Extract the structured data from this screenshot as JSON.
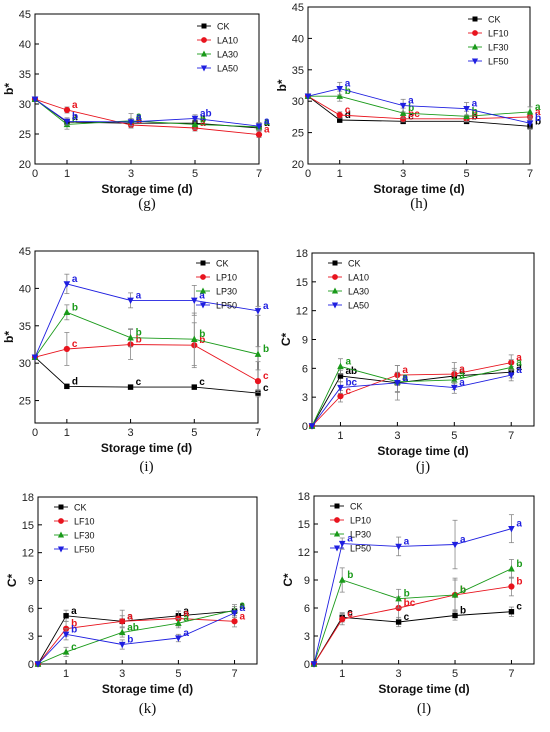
{
  "colors": {
    "CK": "#000000",
    "s10": "#e8141e",
    "s30": "#1a9a1a",
    "s50": "#1f1fe0"
  },
  "chart_data": [
    {
      "panel": "(g)",
      "type": "line",
      "xlabel": "Storage time (d)",
      "ylabel": "b*",
      "xlim": [
        0,
        7
      ],
      "ylim": [
        20,
        45
      ],
      "yticks": [
        20,
        25,
        30,
        35,
        40,
        45
      ],
      "x": [
        0,
        1,
        3,
        5,
        7
      ],
      "xticks": [
        0,
        1,
        3,
        5,
        7
      ],
      "xtick_labels": [
        "0",
        "1",
        "3",
        "5",
        "7"
      ],
      "legend": "top-right",
      "series": [
        {
          "name": "CK",
          "values": [
            30.8,
            27.0,
            26.8,
            26.8,
            26.0
          ],
          "err": [
            0,
            0.5,
            0.5,
            0.5,
            0.4
          ],
          "letters": [
            "",
            "a",
            "a",
            "a",
            "a"
          ]
        },
        {
          "name": "LA10",
          "values": [
            30.8,
            29.0,
            26.5,
            26.0,
            24.9
          ],
          "err": [
            0,
            0.5,
            0.5,
            0.5,
            0.5
          ],
          "letters": [
            "",
            "a",
            "a",
            "a",
            "a"
          ]
        },
        {
          "name": "LA30",
          "values": [
            30.8,
            26.6,
            27.2,
            26.6,
            26.2
          ],
          "err": [
            0,
            0.8,
            1.2,
            0.8,
            0.6
          ],
          "letters": [
            "",
            "c",
            "a",
            "b",
            "a"
          ]
        },
        {
          "name": "LA50",
          "values": [
            30.8,
            27.1,
            27.0,
            27.6,
            26.3
          ],
          "err": [
            0,
            0.6,
            0.6,
            0.6,
            0.6
          ],
          "letters": [
            "",
            "b",
            "a",
            "ab",
            "a"
          ]
        }
      ]
    },
    {
      "panel": "(h)",
      "type": "line",
      "xlabel": "Storage time (d)",
      "ylabel": "b*",
      "xlim": [
        0,
        7
      ],
      "ylim": [
        20,
        45
      ],
      "yticks": [
        20,
        25,
        30,
        35,
        40,
        45
      ],
      "x": [
        0,
        1,
        3,
        5,
        7
      ],
      "xticks": [
        0,
        1,
        3,
        5,
        7
      ],
      "xtick_labels": [
        "0",
        "1",
        "3",
        "5",
        "7"
      ],
      "legend": "top-right",
      "series": [
        {
          "name": "CK",
          "values": [
            30.8,
            27.0,
            26.8,
            26.8,
            26.0
          ],
          "err": [
            0,
            0.4,
            0.4,
            0.4,
            0.5
          ],
          "letters": [
            "",
            "d",
            "c",
            "b",
            "b"
          ]
        },
        {
          "name": "LF10",
          "values": [
            30.8,
            27.8,
            27.2,
            27.2,
            27.5
          ],
          "err": [
            0,
            0.5,
            0.5,
            0.5,
            0.5
          ],
          "letters": [
            "",
            "c",
            "bc",
            "b",
            "a"
          ]
        },
        {
          "name": "LF30",
          "values": [
            30.8,
            30.8,
            28.1,
            27.6,
            28.3
          ],
          "err": [
            0,
            0.8,
            0.8,
            0.8,
            0.8
          ],
          "letters": [
            "",
            "b",
            "b",
            "b",
            "a"
          ]
        },
        {
          "name": "LF50",
          "values": [
            30.8,
            32.0,
            29.3,
            28.8,
            26.5
          ],
          "err": [
            0,
            1.0,
            1.0,
            1.0,
            0.8
          ],
          "letters": [
            "",
            "a",
            "a",
            "a",
            "b"
          ]
        }
      ]
    },
    {
      "panel": "(i)",
      "type": "line",
      "xlabel": "Storage time (d)",
      "ylabel": "b*",
      "xlim": [
        0,
        7
      ],
      "ylim": [
        22,
        45
      ],
      "yticks": [
        25,
        30,
        35,
        40,
        45
      ],
      "x": [
        0,
        1,
        3,
        5,
        7
      ],
      "xticks": [
        0,
        1,
        3,
        5,
        7
      ],
      "xtick_labels": [
        "0",
        "1",
        "3",
        "5",
        "7"
      ],
      "legend": "top-right",
      "series": [
        {
          "name": "CK",
          "values": [
            30.8,
            26.9,
            26.8,
            26.8,
            26.0
          ],
          "err": [
            0,
            0.3,
            0.3,
            0.3,
            0.5
          ],
          "letters": [
            "",
            "d",
            "c",
            "c",
            "c"
          ]
        },
        {
          "name": "LP10",
          "values": [
            30.8,
            31.9,
            32.5,
            32.4,
            27.6
          ],
          "err": [
            0,
            2.2,
            2.0,
            3.0,
            1.5
          ],
          "letters": [
            "",
            "c",
            "b",
            "b",
            "c"
          ]
        },
        {
          "name": "LP30",
          "values": [
            30.8,
            36.8,
            33.4,
            33.2,
            31.2
          ],
          "err": [
            0,
            1.0,
            1.2,
            3.5,
            1.0
          ],
          "letters": [
            "",
            "b",
            "b",
            "b",
            "b"
          ]
        },
        {
          "name": "LP50",
          "values": [
            30.8,
            40.6,
            38.4,
            38.4,
            37.0
          ],
          "err": [
            0,
            1.3,
            1.0,
            2.0,
            0.6
          ],
          "letters": [
            "",
            "a",
            "a",
            "a",
            "a"
          ]
        }
      ]
    },
    {
      "panel": "(j)",
      "type": "line",
      "xlabel": "Storage time (d)",
      "ylabel": "C*",
      "xlim": [
        0,
        7.8
      ],
      "ylim": [
        0,
        18
      ],
      "yticks": [
        0,
        3,
        6,
        9,
        12,
        15,
        18
      ],
      "x": [
        0,
        1,
        3,
        5,
        7
      ],
      "xticks": [
        1,
        3,
        5,
        7
      ],
      "xtick_labels": [
        "1",
        "3",
        "5",
        "7"
      ],
      "legend": "top-left",
      "series": [
        {
          "name": "CK",
          "values": [
            0,
            5.2,
            4.5,
            5.2,
            5.6
          ],
          "err": [
            0,
            0.6,
            1.0,
            0.8,
            0.6
          ],
          "letters": [
            "",
            "ab",
            "a",
            "a",
            "a"
          ]
        },
        {
          "name": "LA10",
          "values": [
            0,
            3.1,
            5.3,
            5.4,
            6.6
          ],
          "err": [
            0,
            0.6,
            1.0,
            1.2,
            0.8
          ],
          "letters": [
            "",
            "c",
            "a",
            "a",
            "a"
          ]
        },
        {
          "name": "LA30",
          "values": [
            0,
            6.2,
            4.6,
            4.8,
            6.1
          ],
          "err": [
            0,
            0.8,
            1.0,
            1.0,
            0.8
          ],
          "letters": [
            "",
            "a",
            "a",
            "a",
            "a"
          ]
        },
        {
          "name": "LA50",
          "values": [
            0,
            4.0,
            4.5,
            4.0,
            5.3
          ],
          "err": [
            0,
            0.6,
            1.8,
            0.6,
            0.6
          ],
          "letters": [
            "",
            "bc",
            "a",
            "a",
            "a"
          ]
        }
      ]
    },
    {
      "panel": "(k)",
      "type": "line",
      "xlabel": "Storage time (d)",
      "ylabel": "C*",
      "xlim": [
        0,
        7.8
      ],
      "ylim": [
        0,
        18
      ],
      "yticks": [
        0,
        3,
        6,
        9,
        12,
        15,
        18
      ],
      "x": [
        0,
        1,
        3,
        5,
        7
      ],
      "xticks": [
        1,
        3,
        5,
        7
      ],
      "xtick_labels": [
        "1",
        "3",
        "5",
        "7"
      ],
      "legend": "top-left",
      "series": [
        {
          "name": "CK",
          "values": [
            0,
            5.2,
            4.6,
            5.2,
            5.7
          ],
          "err": [
            0,
            0.6,
            0.6,
            0.5,
            0.5
          ],
          "letters": [
            "",
            "a",
            "a",
            "a",
            "a"
          ]
        },
        {
          "name": "LF10",
          "values": [
            0,
            3.8,
            4.6,
            4.9,
            4.6
          ],
          "err": [
            0,
            0.8,
            1.2,
            0.8,
            0.6
          ],
          "letters": [
            "",
            "b",
            "a",
            "a",
            "a"
          ]
        },
        {
          "name": "LF30",
          "values": [
            0,
            1.3,
            3.4,
            4.4,
            5.8
          ],
          "err": [
            0,
            0.5,
            0.5,
            0.5,
            0.6
          ],
          "letters": [
            "",
            "c",
            "ab",
            "a",
            "a"
          ]
        },
        {
          "name": "LF50",
          "values": [
            0,
            3.2,
            2.1,
            2.8,
            5.5
          ],
          "err": [
            0,
            0.6,
            0.5,
            0.4,
            0.5
          ],
          "letters": [
            "",
            "b",
            "b",
            "a",
            "a"
          ]
        }
      ]
    },
    {
      "panel": "(l)",
      "type": "line",
      "xlabel": "Storage time (d)",
      "ylabel": "C*",
      "xlim": [
        0,
        7.8
      ],
      "ylim": [
        0,
        18
      ],
      "yticks": [
        0,
        3,
        6,
        9,
        12,
        15,
        18
      ],
      "x": [
        0,
        1,
        3,
        5,
        7
      ],
      "xticks": [
        1,
        3,
        5,
        7
      ],
      "xtick_labels": [
        "1",
        "3",
        "5",
        "7"
      ],
      "legend": "top-left",
      "series": [
        {
          "name": "CK",
          "values": [
            0,
            5.0,
            4.5,
            5.2,
            5.6
          ],
          "err": [
            0,
            0.5,
            0.5,
            0.5,
            0.5
          ],
          "letters": [
            "",
            "c",
            "c",
            "b",
            "c"
          ]
        },
        {
          "name": "LP10",
          "values": [
            0,
            4.8,
            6.0,
            7.4,
            8.3
          ],
          "err": [
            0,
            0.6,
            1.2,
            1.8,
            1.0
          ],
          "letters": [
            "",
            "c",
            "bc",
            "b",
            "b"
          ]
        },
        {
          "name": "LP30",
          "values": [
            0,
            9.0,
            7.0,
            7.4,
            10.2
          ],
          "err": [
            0,
            1.3,
            1.0,
            1.6,
            1.0
          ],
          "letters": [
            "",
            "b",
            "b",
            "b",
            "b"
          ]
        },
        {
          "name": "LP50",
          "values": [
            0,
            12.9,
            12.6,
            12.8,
            14.5
          ],
          "err": [
            0,
            0.6,
            1.0,
            2.6,
            1.5
          ],
          "letters": [
            "",
            "a",
            "a",
            "a",
            "a"
          ]
        }
      ]
    }
  ]
}
